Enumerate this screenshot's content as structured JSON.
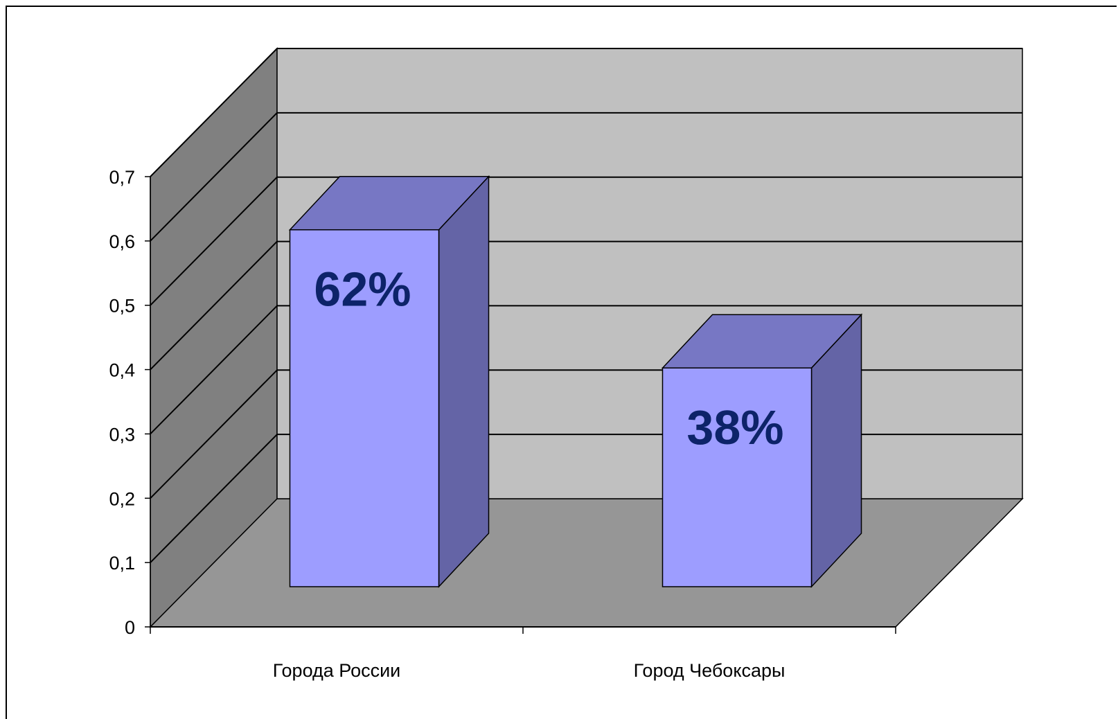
{
  "chart_data": {
    "type": "bar",
    "title": "",
    "xlabel": "",
    "ylabel": "",
    "categories": [
      "Города России",
      "Город Чебоксары"
    ],
    "series": [
      {
        "values": [
          0.62,
          0.38
        ]
      }
    ],
    "data_labels": [
      "62%",
      "38%"
    ],
    "y_ticks": [
      "0",
      "0,1",
      "0,2",
      "0,3",
      "0,4",
      "0,5",
      "0,6",
      "0,7"
    ],
    "ylim": [
      0,
      0.7
    ],
    "grid": true,
    "legend": "none",
    "three_d": true,
    "colors": {
      "bar_front": "#9d9dff",
      "bar_top": "#7777c4",
      "bar_side": "#6464a6",
      "back_wall": "#c0c0c0",
      "side_wall": "#808080",
      "floor": "#969696",
      "data_label": "#0d2369"
    }
  }
}
